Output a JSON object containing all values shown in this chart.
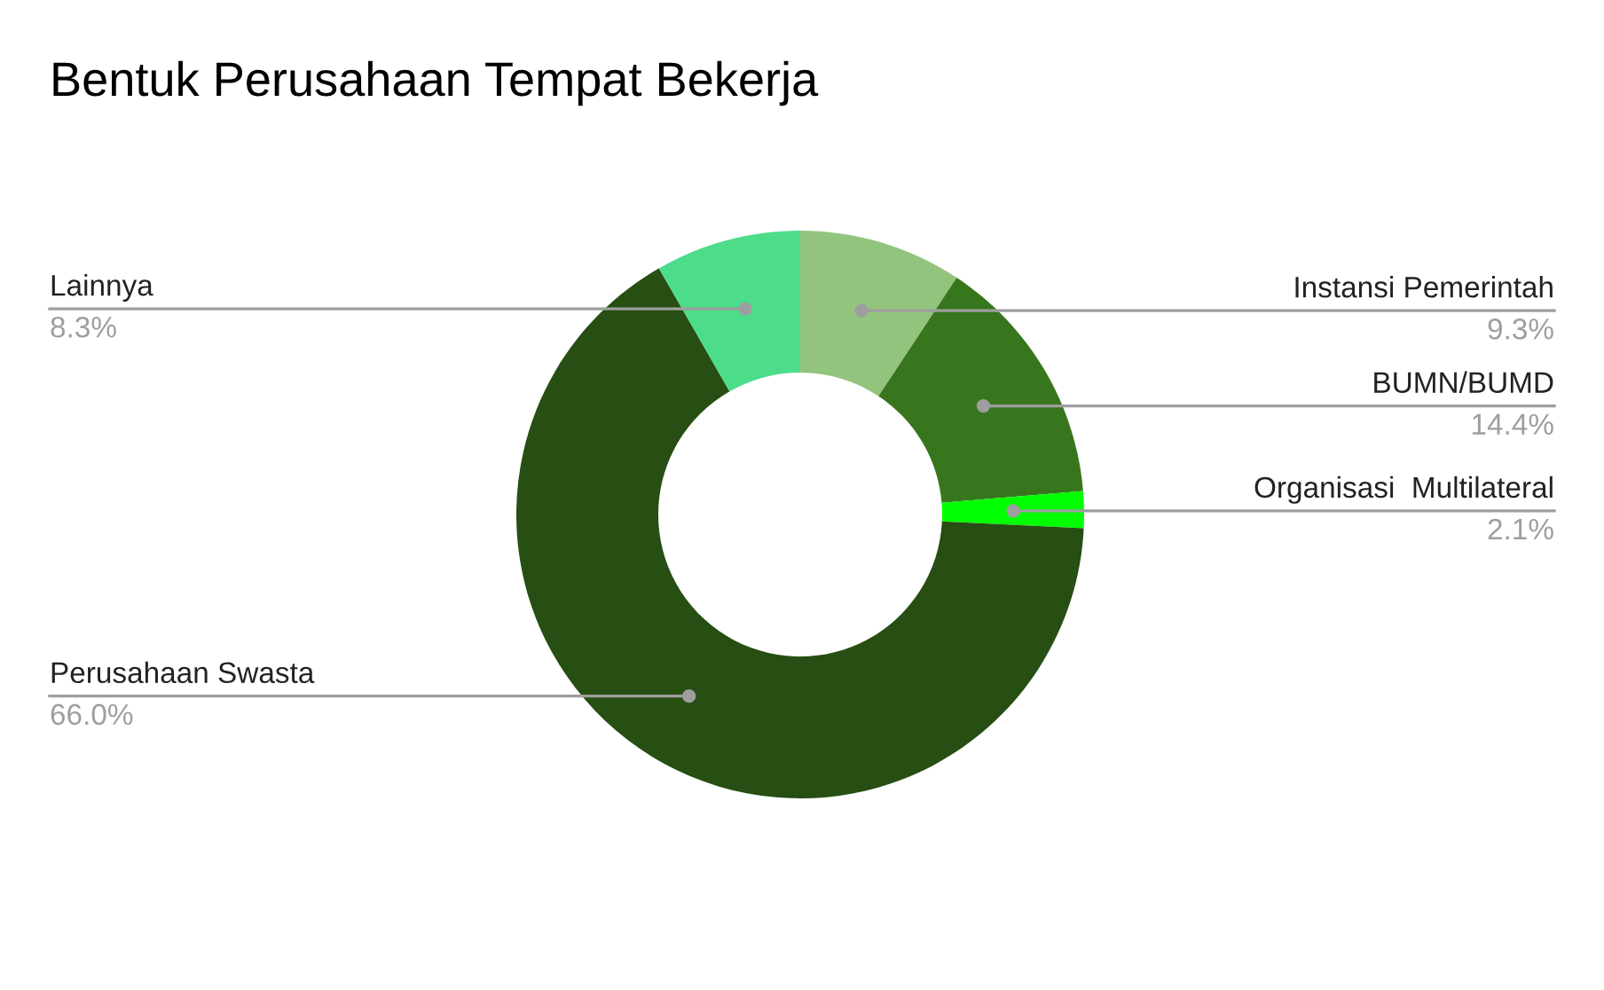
{
  "chart_data": {
    "type": "donut",
    "title": "Bentuk Perusahaan Tempat Bekerja",
    "categories": [
      "Instansi Pemerintah",
      "BUMN/BUMD",
      "Organisasi  Multilateral",
      "Perusahaan Swasta",
      "Lainnya"
    ],
    "values": [
      9.3,
      14.4,
      2.1,
      66.0,
      8.3
    ],
    "colors": [
      "#93c47d",
      "#38761d",
      "#00ff00",
      "#274e13",
      "#4ddc8a"
    ],
    "value_labels": [
      "9.3%",
      "14.4%",
      "2.1%",
      "66.0%",
      "8.3%"
    ]
  }
}
